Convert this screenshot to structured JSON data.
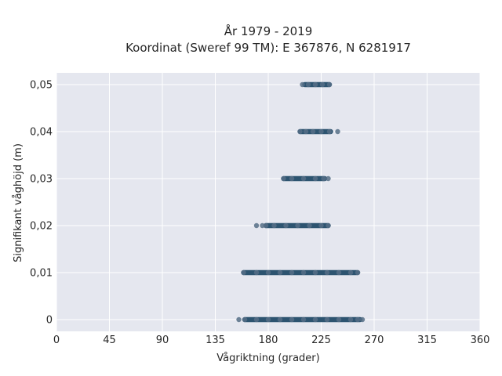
{
  "chart_data": {
    "type": "scatter",
    "title_lines": [
      "År 1979 - 2019",
      "Koordinat (Sweref 99 TM): E 367876, N 6281917"
    ],
    "xlabel": "Vågriktning (grader)",
    "ylabel": "Signifikant våghöjd (m)",
    "xlim": [
      0,
      360
    ],
    "ylim": [
      -0.0025,
      0.0525
    ],
    "xticks": [
      0,
      45,
      90,
      135,
      180,
      225,
      270,
      315,
      360
    ],
    "xtick_labels": [
      "0",
      "45",
      "90",
      "135",
      "180",
      "225",
      "270",
      "315",
      "360"
    ],
    "yticks": [
      0,
      0.01,
      0.02,
      0.03,
      0.04,
      0.05
    ],
    "ytick_labels": [
      "0",
      "0,01",
      "0,02",
      "0,03",
      "0,04",
      "0,05"
    ],
    "grid": true,
    "legend": "none",
    "colors": {
      "background": "#e5e7ef",
      "grid": "#ffffff",
      "marker": "#2d5470",
      "marker_light": "#566f86"
    },
    "series": [
      {
        "points": [
          {
            "x": 155,
            "y": 0
          },
          {
            "x": 160,
            "y": 0
          },
          {
            "x": 170,
            "y": 0
          },
          {
            "x": 180,
            "y": 0
          },
          {
            "x": 190,
            "y": 0
          },
          {
            "x": 200,
            "y": 0
          },
          {
            "x": 210,
            "y": 0
          },
          {
            "x": 220,
            "y": 0
          },
          {
            "x": 230,
            "y": 0
          },
          {
            "x": 240,
            "y": 0
          },
          {
            "x": 250,
            "y": 0
          },
          {
            "x": 256,
            "y": 0
          },
          {
            "x": 260,
            "y": 0
          },
          {
            "x": 159,
            "y": 0.01
          },
          {
            "x": 170,
            "y": 0.01
          },
          {
            "x": 180,
            "y": 0.01
          },
          {
            "x": 190,
            "y": 0.01
          },
          {
            "x": 200,
            "y": 0.01
          },
          {
            "x": 210,
            "y": 0.01
          },
          {
            "x": 220,
            "y": 0.01
          },
          {
            "x": 230,
            "y": 0.01
          },
          {
            "x": 240,
            "y": 0.01
          },
          {
            "x": 250,
            "y": 0.01
          },
          {
            "x": 256,
            "y": 0.01
          },
          {
            "x": 170,
            "y": 0.02
          },
          {
            "x": 175,
            "y": 0.02
          },
          {
            "x": 178,
            "y": 0.02
          },
          {
            "x": 185,
            "y": 0.02
          },
          {
            "x": 195,
            "y": 0.02
          },
          {
            "x": 205,
            "y": 0.02
          },
          {
            "x": 215,
            "y": 0.02
          },
          {
            "x": 225,
            "y": 0.02
          },
          {
            "x": 231,
            "y": 0.02
          },
          {
            "x": 193,
            "y": 0.03
          },
          {
            "x": 200,
            "y": 0.03
          },
          {
            "x": 210,
            "y": 0.03
          },
          {
            "x": 220,
            "y": 0.03
          },
          {
            "x": 227,
            "y": 0.03
          },
          {
            "x": 231,
            "y": 0.03
          },
          {
            "x": 207,
            "y": 0.04
          },
          {
            "x": 212,
            "y": 0.04
          },
          {
            "x": 218,
            "y": 0.04
          },
          {
            "x": 225,
            "y": 0.04
          },
          {
            "x": 232,
            "y": 0.04
          },
          {
            "x": 239,
            "y": 0.04
          },
          {
            "x": 209,
            "y": 0.05
          },
          {
            "x": 214,
            "y": 0.05
          },
          {
            "x": 220,
            "y": 0.05
          },
          {
            "x": 226,
            "y": 0.05
          },
          {
            "x": 232,
            "y": 0.05
          }
        ],
        "bands": [
          {
            "y": 0,
            "x_from": 160,
            "x_to": 258
          },
          {
            "y": 0.01,
            "x_from": 159,
            "x_to": 256
          },
          {
            "y": 0.02,
            "x_from": 178,
            "x_to": 231
          },
          {
            "y": 0.03,
            "x_from": 193,
            "x_to": 228
          },
          {
            "y": 0.04,
            "x_from": 207,
            "x_to": 233
          },
          {
            "y": 0.05,
            "x_from": 211,
            "x_to": 232
          }
        ]
      }
    ]
  }
}
